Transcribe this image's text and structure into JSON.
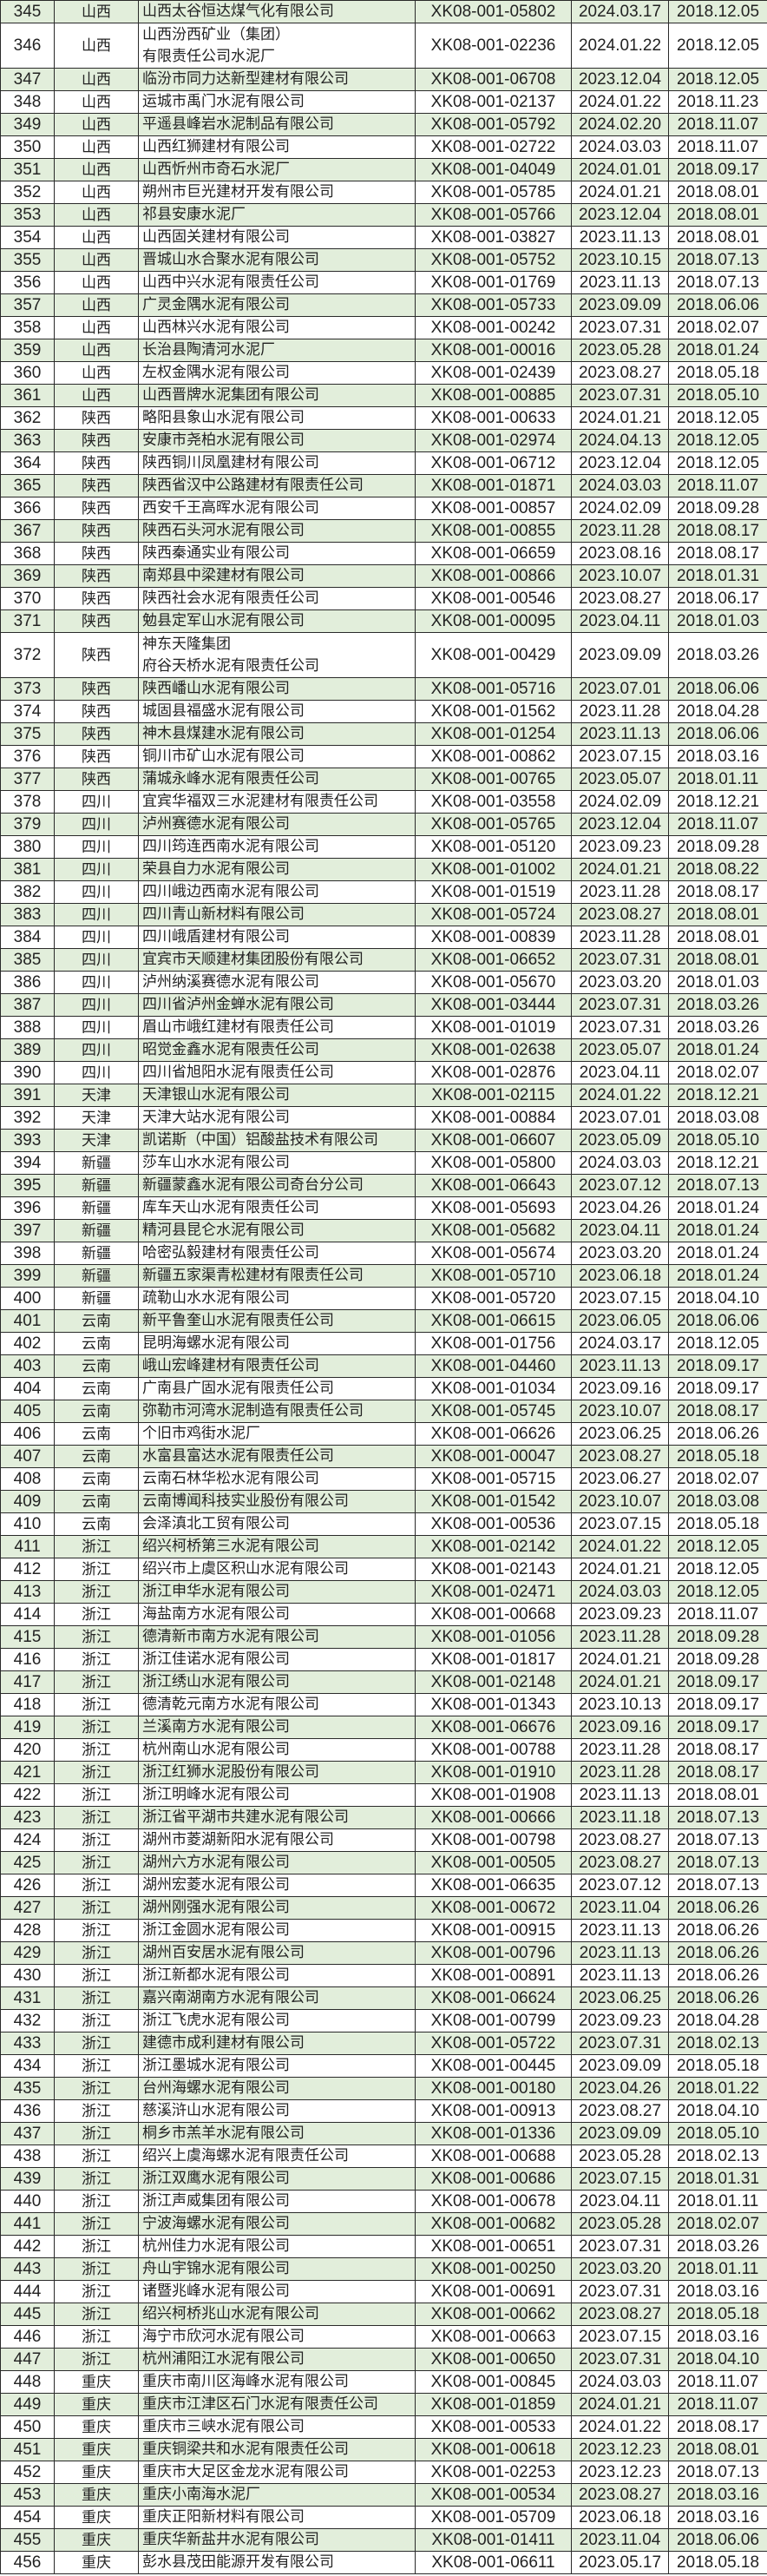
{
  "colors": {
    "stripe": "#e2eedb",
    "border": "#2a2a2a"
  },
  "rows": [
    [
      "345",
      "山西",
      "山西太谷恒达煤气化有限公司",
      "XK08-001-05802",
      "2024.03.17",
      "2018.12.05"
    ],
    [
      "346",
      "山西",
      "山西汾西矿业（集团）\n有限责任公司水泥厂",
      "XK08-001-02236",
      "2024.01.22",
      "2018.12.05"
    ],
    [
      "347",
      "山西",
      "临汾市同力达新型建材有限公司",
      "XK08-001-06708",
      "2023.12.04",
      "2018.12.05"
    ],
    [
      "348",
      "山西",
      "运城市禹门水泥有限公司",
      "XK08-001-02137",
      "2024.01.22",
      "2018.11.23"
    ],
    [
      "349",
      "山西",
      "平遥县峰岩水泥制品有限公司",
      "XK08-001-05792",
      "2024.02.20",
      "2018.11.07"
    ],
    [
      "350",
      "山西",
      "山西红狮建材有限公司",
      "XK08-001-02722",
      "2024.03.03",
      "2018.11.07"
    ],
    [
      "351",
      "山西",
      "山西忻州市奇石水泥厂",
      "XK08-001-04049",
      "2024.01.01",
      "2018.09.17"
    ],
    [
      "352",
      "山西",
      "朔州市巨光建材开发有限公司",
      "XK08-001-05785",
      "2024.01.21",
      "2018.08.01"
    ],
    [
      "353",
      "山西",
      "祁县安康水泥厂",
      "XK08-001-05766",
      "2023.12.04",
      "2018.08.01"
    ],
    [
      "354",
      "山西",
      "山西固关建材有限公司",
      "XK08-001-03827",
      "2023.11.13",
      "2018.08.01"
    ],
    [
      "355",
      "山西",
      "晋城山水合聚水泥有限公司",
      "XK08-001-05752",
      "2023.10.15",
      "2018.07.13"
    ],
    [
      "356",
      "山西",
      "山西中兴水泥有限责任公司",
      "XK08-001-01769",
      "2023.11.13",
      "2018.07.13"
    ],
    [
      "357",
      "山西",
      "广灵金隅水泥有限公司",
      "XK08-001-05733",
      "2023.09.09",
      "2018.06.06"
    ],
    [
      "358",
      "山西",
      "山西林兴水泥有限公司",
      "XK08-001-00242",
      "2023.07.31",
      "2018.02.07"
    ],
    [
      "359",
      "山西",
      "长治县陶清河水泥厂",
      "XK08-001-00016",
      "2023.05.28",
      "2018.01.24"
    ],
    [
      "360",
      "山西",
      "左权金隅水泥有限公司",
      "XK08-001-02439",
      "2023.08.27",
      "2018.05.18"
    ],
    [
      "361",
      "山西",
      "山西晋牌水泥集团有限公司",
      "XK08-001-00885",
      "2023.07.31",
      "2018.05.10"
    ],
    [
      "362",
      "陕西",
      "略阳县象山水泥有限公司",
      "XK08-001-00633",
      "2024.01.21",
      "2018.12.05"
    ],
    [
      "363",
      "陕西",
      "安康市尧柏水泥有限公司",
      "XK08-001-02974",
      "2024.04.13",
      "2018.12.05"
    ],
    [
      "364",
      "陕西",
      "陕西铜川凤凰建材有限公司",
      "XK08-001-06712",
      "2023.12.04",
      "2018.12.05"
    ],
    [
      "365",
      "陕西",
      "陕西省汉中公路建材有限责任公司",
      "XK08-001-01871",
      "2024.03.03",
      "2018.11.07"
    ],
    [
      "366",
      "陕西",
      "西安千王高晖水泥有限公司",
      "XK08-001-00857",
      "2024.02.09",
      "2018.09.28"
    ],
    [
      "367",
      "陕西",
      "陕西石头河水泥有限公司",
      "XK08-001-00855",
      "2023.11.28",
      "2018.08.17"
    ],
    [
      "368",
      "陕西",
      "陕西秦通实业有限公司",
      "XK08-001-06659",
      "2023.08.16",
      "2018.08.17"
    ],
    [
      "369",
      "陕西",
      "南郑县中梁建材有限公司",
      "XK08-001-00866",
      "2023.10.07",
      "2018.01.31"
    ],
    [
      "370",
      "陕西",
      "陕西社会水泥有限责任公司",
      "XK08-001-00546",
      "2023.08.27",
      "2018.06.17"
    ],
    [
      "371",
      "陕西",
      "勉县定军山水泥有限公司",
      "XK08-001-00095",
      "2023.04.11",
      "2018.01.03"
    ],
    [
      "372",
      "陕西",
      "神东天隆集团\n府谷天桥水泥有限责任公司",
      "XK08-001-00429",
      "2023.09.09",
      "2018.03.26"
    ],
    [
      "373",
      "陕西",
      "陕西嶓山水泥有限公司",
      "XK08-001-05716",
      "2023.07.01",
      "2018.06.06"
    ],
    [
      "374",
      "陕西",
      "城固县福盛水泥有限公司",
      "XK08-001-01562",
      "2023.11.28",
      "2018.04.28"
    ],
    [
      "375",
      "陕西",
      "神木县煤建水泥有限公司",
      "XK08-001-01254",
      "2023.11.13",
      "2018.06.06"
    ],
    [
      "376",
      "陕西",
      "铜川市矿山水泥有限公司",
      "XK08-001-00862",
      "2023.07.15",
      "2018.03.16"
    ],
    [
      "377",
      "陕西",
      "蒲城永峰水泥有限责任公司",
      "XK08-001-00765",
      "2023.05.07",
      "2018.01.11"
    ],
    [
      "378",
      "四川",
      "宜宾华福双三水泥建材有限责任公司",
      "XK08-001-03558",
      "2024.02.09",
      "2018.12.21"
    ],
    [
      "379",
      "四川",
      "泸州赛德水泥有限公司",
      "XK08-001-05765",
      "2023.12.04",
      "2018.11.07"
    ],
    [
      "380",
      "四川",
      "四川筠连西南水泥有限公司",
      "XK08-001-05120",
      "2023.09.23",
      "2018.09.28"
    ],
    [
      "381",
      "四川",
      "荣县自力水泥有限公司",
      "XK08-001-01002",
      "2024.01.21",
      "2018.08.22"
    ],
    [
      "382",
      "四川",
      "四川峨边西南水泥有限公司",
      "XK08-001-01519",
      "2023.11.28",
      "2018.08.17"
    ],
    [
      "383",
      "四川",
      "四川青山新材料有限公司",
      "XK08-001-05724",
      "2023.08.27",
      "2018.08.01"
    ],
    [
      "384",
      "四川",
      "四川峨盾建材有限公司",
      "XK08-001-00839",
      "2023.11.28",
      "2018.08.01"
    ],
    [
      "385",
      "四川",
      "宜宾市天顺建材集团股份有限公司",
      "XK08-001-06652",
      "2023.07.31",
      "2018.08.01"
    ],
    [
      "386",
      "四川",
      "泸州纳溪赛德水泥有限公司",
      "XK08-001-05670",
      "2023.03.20",
      "2018.01.03"
    ],
    [
      "387",
      "四川",
      "四川省泸州金蝉水泥有限公司",
      "XK08-001-03444",
      "2023.07.31",
      "2018.03.26"
    ],
    [
      "388",
      "四川",
      "眉山市峨红建材有限责任公司",
      "XK08-001-01019",
      "2023.07.31",
      "2018.03.26"
    ],
    [
      "389",
      "四川",
      "昭觉金鑫水泥有限责任公司",
      "XK08-001-02638",
      "2023.05.07",
      "2018.01.24"
    ],
    [
      "390",
      "四川",
      "四川省旭阳水泥有限责任公司",
      "XK08-001-02876",
      "2023.04.11",
      "2018.02.07"
    ],
    [
      "391",
      "天津",
      "天津银山水泥有限公司",
      "XK08-001-02115",
      "2024.01.22",
      "2018.12.21"
    ],
    [
      "392",
      "天津",
      "天津大站水泥有限公司",
      "XK08-001-00884",
      "2023.07.01",
      "2018.03.08"
    ],
    [
      "393",
      "天津",
      "凯诺斯（中国）铝酸盐技术有限公司",
      "XK08-001-06607",
      "2023.05.09",
      "2018.05.10"
    ],
    [
      "394",
      "新疆",
      "莎车山水水泥有限公司",
      "XK08-001-05800",
      "2024.03.03",
      "2018.12.21"
    ],
    [
      "395",
      "新疆",
      "新疆蒙鑫水泥有限公司奇台分公司",
      "XK08-001-06643",
      "2023.07.12",
      "2018.07.13"
    ],
    [
      "396",
      "新疆",
      "库车天山水泥有限责任公司",
      "XK08-001-05693",
      "2023.04.26",
      "2018.01.24"
    ],
    [
      "397",
      "新疆",
      "精河县昆仑水泥有限公司",
      "XK08-001-05682",
      "2023.04.11",
      "2018.01.24"
    ],
    [
      "398",
      "新疆",
      "哈密弘毅建材有限责任公司",
      "XK08-001-05674",
      "2023.03.20",
      "2018.01.24"
    ],
    [
      "399",
      "新疆",
      "新疆五家渠青松建材有限责任公司",
      "XK08-001-05710",
      "2023.06.18",
      "2018.01.24"
    ],
    [
      "400",
      "新疆",
      "疏勒山水水泥有限公司",
      "XK08-001-05720",
      "2023.07.15",
      "2018.04.10"
    ],
    [
      "401",
      "云南",
      "新平鲁奎山水泥有限责任公司",
      "XK08-001-06615",
      "2023.06.05",
      "2018.06.06"
    ],
    [
      "402",
      "云南",
      "昆明海螺水泥有限公司",
      "XK08-001-01756",
      "2024.03.17",
      "2018.12.05"
    ],
    [
      "403",
      "云南",
      "峨山宏峰建材有限责任公司",
      "XK08-001-04460",
      "2023.11.13",
      "2018.09.17"
    ],
    [
      "404",
      "云南",
      "广南县广固水泥有限责任公司",
      "XK08-001-01034",
      "2023.09.16",
      "2018.09.17"
    ],
    [
      "405",
      "云南",
      "弥勒市河湾水泥制造有限责任公司",
      "XK08-001-05745",
      "2023.10.07",
      "2018.08.17"
    ],
    [
      "406",
      "云南",
      "个旧市鸡街水泥厂",
      "XK08-001-06626",
      "2023.06.25",
      "2018.06.26"
    ],
    [
      "407",
      "云南",
      "水富县富达水泥有限责任公司",
      "XK08-001-00047",
      "2023.08.27",
      "2018.05.18"
    ],
    [
      "408",
      "云南",
      "云南石林华松水泥有限公司",
      "XK08-001-05715",
      "2023.06.27",
      "2018.02.07"
    ],
    [
      "409",
      "云南",
      "云南博闻科技实业股份有限公司",
      "XK08-001-01542",
      "2023.10.07",
      "2018.03.08"
    ],
    [
      "410",
      "云南",
      "会泽滇北工贸有限公司",
      "XK08-001-00536",
      "2023.07.15",
      "2018.05.18"
    ],
    [
      "411",
      "浙江",
      "绍兴柯桥第三水泥有限公司",
      "XK08-001-02142",
      "2024.01.22",
      "2018.12.05"
    ],
    [
      "412",
      "浙江",
      "绍兴市上虞区积山水泥有限公司",
      "XK08-001-02143",
      "2024.01.21",
      "2018.12.05"
    ],
    [
      "413",
      "浙江",
      "浙江申华水泥有限公司",
      "XK08-001-02471",
      "2024.03.03",
      "2018.12.05"
    ],
    [
      "414",
      "浙江",
      "海盐南方水泥有限公司",
      "XK08-001-00668",
      "2023.09.23",
      "2018.11.07"
    ],
    [
      "415",
      "浙江",
      "德清新市南方水泥有限公司",
      "XK08-001-01056",
      "2023.11.28",
      "2018.09.28"
    ],
    [
      "416",
      "浙江",
      "浙江佳诺水泥有限公司",
      "XK08-001-01817",
      "2024.01.21",
      "2018.09.28"
    ],
    [
      "417",
      "浙江",
      "浙江绣山水泥有限公司",
      "XK08-001-02148",
      "2024.01.21",
      "2018.09.17"
    ],
    [
      "418",
      "浙江",
      "德清乾元南方水泥有限公司",
      "XK08-001-01343",
      "2023.10.13",
      "2018.09.17"
    ],
    [
      "419",
      "浙江",
      "兰溪南方水泥有限公司",
      "XK08-001-06676",
      "2023.09.16",
      "2018.09.17"
    ],
    [
      "420",
      "浙江",
      "杭州南山水泥有限公司",
      "XK08-001-00788",
      "2023.11.28",
      "2018.08.17"
    ],
    [
      "421",
      "浙江",
      "浙江红狮水泥股份有限公司",
      "XK08-001-01910",
      "2023.11.28",
      "2018.08.17"
    ],
    [
      "422",
      "浙江",
      "浙江明峰水泥有限公司",
      "XK08-001-01908",
      "2023.11.13",
      "2018.08.01"
    ],
    [
      "423",
      "浙江",
      "浙江省平湖市共建水泥有限公司",
      "XK08-001-00666",
      "2023.11.18",
      "2018.07.13"
    ],
    [
      "424",
      "浙江",
      "湖州市菱湖新阳水泥有限公司",
      "XK08-001-00798",
      "2023.08.27",
      "2018.07.13"
    ],
    [
      "425",
      "浙江",
      "湖州六方水泥有限公司",
      "XK08-001-00505",
      "2023.08.27",
      "2018.07.13"
    ],
    [
      "426",
      "浙江",
      "湖州宏菱水泥有限公司",
      "XK08-001-06635",
      "2023.07.12",
      "2018.07.13"
    ],
    [
      "427",
      "浙江",
      "湖州刚强水泥有限公司",
      "XK08-001-00672",
      "2023.11.04",
      "2018.06.26"
    ],
    [
      "428",
      "浙江",
      "浙江金圆水泥有限公司",
      "XK08-001-00915",
      "2023.11.13",
      "2018.06.26"
    ],
    [
      "429",
      "浙江",
      "湖州百安居水泥有限公司",
      "XK08-001-00796",
      "2023.11.13",
      "2018.06.26"
    ],
    [
      "430",
      "浙江",
      "浙江新都水泥有限公司",
      "XK08-001-00891",
      "2023.11.13",
      "2018.06.26"
    ],
    [
      "431",
      "浙江",
      "嘉兴南湖南方水泥有限公司",
      "XK08-001-06624",
      "2023.06.25",
      "2018.06.26"
    ],
    [
      "432",
      "浙江",
      "浙江飞虎水泥有限公司",
      "XK08-001-00799",
      "2023.09.23",
      "2018.04.28"
    ],
    [
      "433",
      "浙江",
      "建德市成利建材有限公司",
      "XK08-001-05722",
      "2023.07.31",
      "2018.02.13"
    ],
    [
      "434",
      "浙江",
      "浙江墨城水泥有限公司",
      "XK08-001-00445",
      "2023.09.09",
      "2018.05.18"
    ],
    [
      "435",
      "浙江",
      "台州海螺水泥有限公司",
      "XK08-001-00180",
      "2023.04.26",
      "2018.01.22"
    ],
    [
      "436",
      "浙江",
      "慈溪浒山水泥有限公司",
      "XK08-001-00913",
      "2023.08.27",
      "2018.04.10"
    ],
    [
      "437",
      "浙江",
      "桐乡市羔羊水泥有限公司",
      "XK08-001-01336",
      "2023.09.09",
      "2018.05.10"
    ],
    [
      "438",
      "浙江",
      "绍兴上虞海螺水泥有限责任公司",
      "XK08-001-00688",
      "2023.05.28",
      "2018.02.13"
    ],
    [
      "439",
      "浙江",
      "浙江双鹰水泥有限公司",
      "XK08-001-00686",
      "2023.07.15",
      "2018.01.31"
    ],
    [
      "440",
      "浙江",
      "浙江声威集团有限公司",
      "XK08-001-00678",
      "2023.04.11",
      "2018.01.11"
    ],
    [
      "441",
      "浙江",
      "宁波海螺水泥有限公司",
      "XK08-001-00682",
      "2023.05.28",
      "2018.02.07"
    ],
    [
      "442",
      "浙江",
      "杭州佳力水泥有限公司",
      "XK08-001-00651",
      "2023.07.31",
      "2018.03.26"
    ],
    [
      "443",
      "浙江",
      "舟山宇锦水泥有限公司",
      "XK08-001-00250",
      "2023.03.20",
      "2018.01.11"
    ],
    [
      "444",
      "浙江",
      "诸暨兆峰水泥有限公司",
      "XK08-001-00691",
      "2023.07.31",
      "2018.03.16"
    ],
    [
      "445",
      "浙江",
      "绍兴柯桥兆山水泥有限公司",
      "XK08-001-00662",
      "2023.08.27",
      "2018.05.18"
    ],
    [
      "446",
      "浙江",
      "海宁市欣河水泥有限公司",
      "XK08-001-00663",
      "2023.07.15",
      "2018.03.16"
    ],
    [
      "447",
      "浙江",
      "杭州浦阳江水泥有限公司",
      "XK08-001-00650",
      "2023.07.31",
      "2018.04.10"
    ],
    [
      "448",
      "重庆",
      "重庆市南川区海峰水泥有限公司",
      "XK08-001-00845",
      "2024.03.03",
      "2018.11.07"
    ],
    [
      "449",
      "重庆",
      "重庆市江津区石门水泥有限责任公司",
      "XK08-001-01859",
      "2024.01.21",
      "2018.11.07"
    ],
    [
      "450",
      "重庆",
      "重庆市三峡水泥有限公司",
      "XK08-001-00533",
      "2024.01.22",
      "2018.08.17"
    ],
    [
      "451",
      "重庆",
      "重庆铜梁共和水泥有限责任公司",
      "XK08-001-00618",
      "2023.12.23",
      "2018.08.01"
    ],
    [
      "452",
      "重庆",
      "重庆市大足区金龙水泥有限公司",
      "XK08-001-02253",
      "2023.12.23",
      "2018.07.13"
    ],
    [
      "453",
      "重庆",
      "重庆小南海水泥厂",
      "XK08-001-00534",
      "2023.08.27",
      "2018.03.16"
    ],
    [
      "454",
      "重庆",
      "重庆正阳新材料有限公司",
      "XK08-001-05709",
      "2023.06.18",
      "2018.03.16"
    ],
    [
      "455",
      "重庆",
      "重庆华新盐井水泥有限公司",
      "XK08-001-01411",
      "2023.11.04",
      "2018.06.06"
    ],
    [
      "456",
      "重庆",
      "彭水县茂田能源开发有限公司",
      "XK08-001-06611",
      "2023.05.17",
      "2018.05.18"
    ]
  ]
}
